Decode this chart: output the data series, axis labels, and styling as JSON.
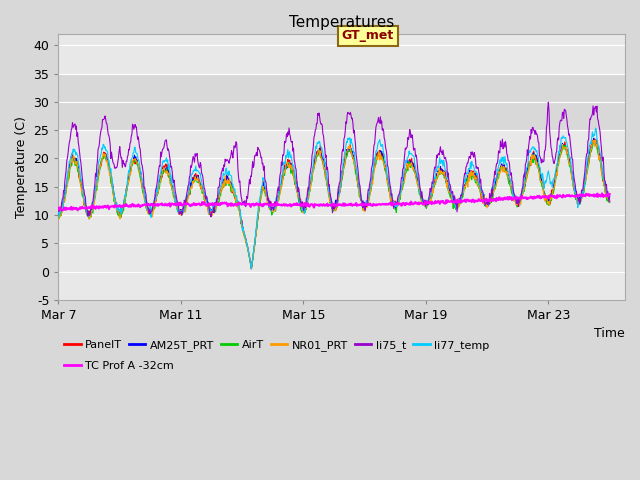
{
  "title": "Temperatures",
  "xlabel": "Time",
  "ylabel": "Temperature (C)",
  "ylim": [
    -5,
    42
  ],
  "xlim_days": [
    0,
    18.5
  ],
  "fig_bg_color": "#d8d8d8",
  "plot_bg_color": "#e8e8e8",
  "band_color": "#d8d8d8",
  "band_ymin": 25,
  "band_ymax": 35,
  "grid_color": "#ffffff",
  "x_tick_labels": [
    "Mar 7",
    "Mar 11",
    "Mar 15",
    "Mar 19",
    "Mar 23"
  ],
  "x_tick_positions": [
    0,
    4,
    8,
    12,
    16
  ],
  "y_ticks": [
    -5,
    0,
    5,
    10,
    15,
    20,
    25,
    30,
    35,
    40
  ],
  "annotation_text": "GT_met",
  "series_colors": {
    "PanelT": "#ff0000",
    "AM25T_PRT": "#0000ff",
    "AirT": "#00cc00",
    "NR01_PRT": "#ff9900",
    "li75_t": "#9900cc",
    "li77_temp": "#00ccff",
    "TC Prof A -32cm": "#ff00ff"
  },
  "legend_entries_row1": [
    "PanelT",
    "AM25T_PRT",
    "AirT",
    "NR01_PRT",
    "li75_t",
    "li77_temp"
  ],
  "legend_entries_row2": [
    "TC Prof A -32cm"
  ]
}
